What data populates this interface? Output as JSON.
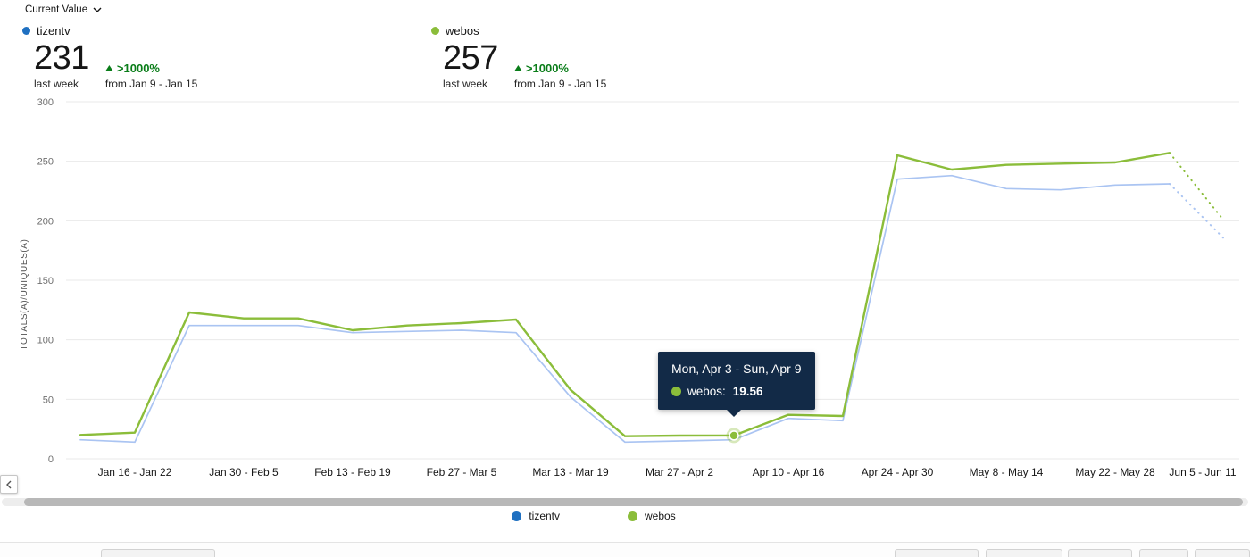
{
  "header": {
    "metric_selector_label": "Current Value"
  },
  "kpis": [
    {
      "name": "tizentv",
      "dot_color": "#1f70c1",
      "value": "231",
      "value_caption": "last week",
      "change": ">1000%",
      "change_caption": "from Jan 9 - Jan 15"
    },
    {
      "name": "webos",
      "dot_color": "#8bbd3a",
      "value": "257",
      "value_caption": "last week",
      "change": ">1000%",
      "change_caption": "from Jan 9 - Jan 15"
    }
  ],
  "chart_data": {
    "type": "line",
    "title": "",
    "xlabel": "",
    "ylabel": "TOTALS(A)/UNIQUES(A)",
    "ylim": [
      0,
      300
    ],
    "y_ticks": [
      0,
      50,
      100,
      150,
      200,
      250,
      300
    ],
    "x_unit": "week",
    "first_week": "Jan 9 - Jan 15",
    "x_tick_labels": [
      "Jan 16 - Jan 22",
      "Jan 30 - Feb 5",
      "Feb 13 - Feb 19",
      "Feb 27 - Mar 5",
      "Mar 13 - Mar 19",
      "Mar 27 - Apr 2",
      "Apr 10 - Apr 16",
      "Apr 24 - Apr 30",
      "May 8 - May 14",
      "May 22 - May 28",
      "Jun 5 - Jun 11"
    ],
    "grid": true,
    "legend_position": "bottom",
    "series": [
      {
        "name": "tizentv",
        "line_color": "#aac4f2",
        "marker_color": "#1f70c1",
        "last_segment_dotted": true,
        "values": [
          16,
          14,
          112,
          112,
          112,
          106,
          107,
          108,
          106,
          52,
          14,
          15,
          16,
          34,
          32,
          235,
          238,
          227,
          226,
          230,
          231,
          185
        ]
      },
      {
        "name": "webos",
        "line_color": "#8bbd3a",
        "marker_color": "#8bbd3a",
        "last_segment_dotted": true,
        "values": [
          20,
          22,
          123,
          118,
          118,
          108,
          112,
          114,
          117,
          58,
          19,
          19.5,
          19.56,
          37,
          36,
          255,
          243,
          247,
          248,
          249,
          257,
          200
        ]
      }
    ]
  },
  "tooltip": {
    "title": "Mon, Apr 3 - Sun, Apr 9",
    "series_label": "webos:",
    "value": "19.56",
    "dot_color": "#8bbd3a",
    "background": "#122a47",
    "point_index": 12
  },
  "legend": [
    {
      "label": "tizentv",
      "color": "#1f70c1"
    },
    {
      "label": "webos",
      "color": "#8bbd3a"
    }
  ],
  "colors": {
    "positive_change": "#0a7d19",
    "gridline": "#e9e9e9"
  }
}
